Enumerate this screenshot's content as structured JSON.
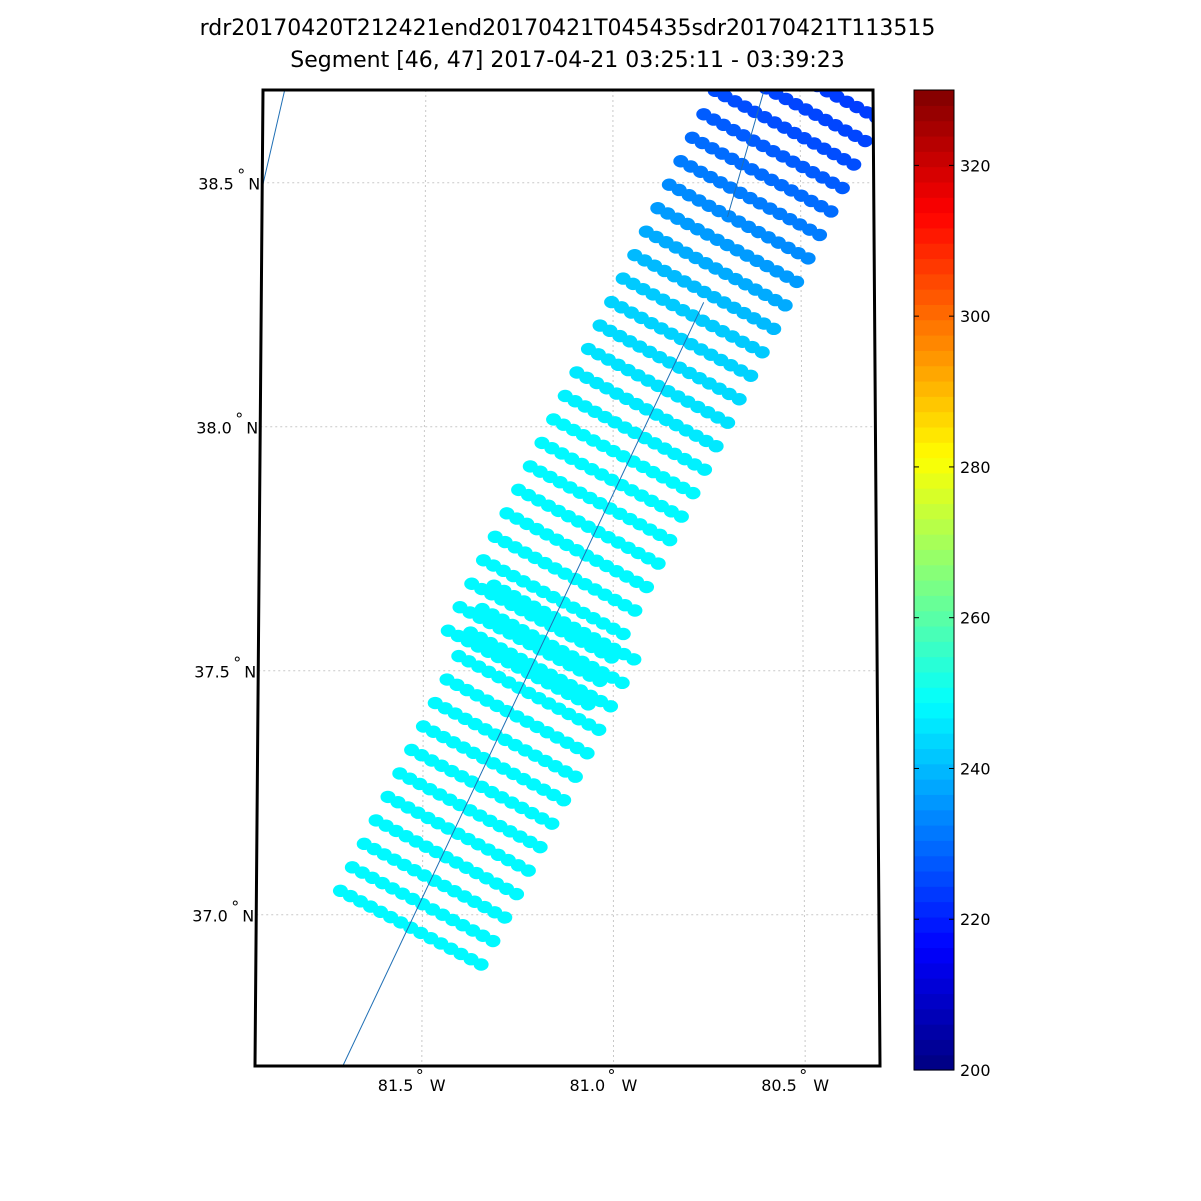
{
  "title": {
    "line1": "rdr20170420T212421end20170421T045435sdr20170421T113515",
    "line2": "Segment [46, 47] 2017-04-21 03:25:11 - 03:39:23"
  },
  "map": {
    "lon_range": [
      -81.935,
      -80.305
    ],
    "lat_range": [
      36.69,
      38.69
    ],
    "lat_ticks": [
      {
        "value": 38.5,
        "label": "38.5",
        "hemi": "N"
      },
      {
        "value": 38.0,
        "label": "38.0",
        "hemi": "N"
      },
      {
        "value": 37.5,
        "label": "37.5",
        "hemi": "N"
      },
      {
        "value": 37.0,
        "label": "37.0",
        "hemi": "N"
      }
    ],
    "lon_ticks": [
      {
        "value": -81.5,
        "label": "81.5",
        "hemi": "W"
      },
      {
        "value": -81.0,
        "label": "81.0",
        "hemi": "W"
      },
      {
        "value": -80.5,
        "label": "80.5",
        "hemi": "W"
      }
    ],
    "degree_symbol": "°",
    "grid": true,
    "grid_color": "#c8c8c8",
    "frame_color": "#000000",
    "ground_track_color": "#1f6fb5",
    "ground_tracks": [
      {
        "lon": [
          -81.877,
          -81.935
        ],
        "lat": [
          38.69,
          38.49
        ]
      },
      {
        "lon": [
          -80.596,
          -80.695
        ],
        "lat": [
          38.69,
          38.43
        ]
      },
      {
        "lon": [
          -80.759,
          -81.706
        ],
        "lat": [
          38.255,
          36.69
        ]
      }
    ]
  },
  "chart_data": {
    "type": "scatter",
    "description_units": "brightness temperature colour scale",
    "segments": [
      {
        "name": "segment 46",
        "start": {
          "lon": -81.715,
          "lat": 37.049
        },
        "row_step": {
          "dlon": 0.0308,
          "dlat": 0.0481
        },
        "along": {
          "dlon": 0.369,
          "dlat": -0.151
        },
        "rows": 14,
        "points_per_row": 15,
        "values_by_row": [
          248,
          248,
          248,
          248,
          248,
          248,
          248,
          248,
          248,
          248,
          248,
          248,
          248,
          248
        ]
      },
      {
        "name": "segment 47",
        "start": {
          "lon": -81.435,
          "lat": 37.582
        },
        "row_step": {
          "dlon": 0.0308,
          "dlat": 0.0481
        },
        "along": {
          "dlon": 0.369,
          "dlat": -0.151
        },
        "rows": 20,
        "points_per_row": 15,
        "values_by_row": [
          248,
          248,
          248,
          248,
          248,
          248,
          248,
          248,
          248,
          248,
          247,
          246,
          245,
          244,
          243,
          242,
          240,
          238,
          236,
          234
        ]
      },
      {
        "name": "segment 47 top",
        "start": {
          "lon": -80.819,
          "lat": 38.544
        },
        "row_step": {
          "dlon": 0.0308,
          "dlat": 0.0481
        },
        "along": {
          "dlon": 0.369,
          "dlat": -0.151
        },
        "rows": 0,
        "points_per_row": 15,
        "values_by_row": []
      }
    ],
    "top_rows_values": [
      232,
      230,
      228,
      226,
      225,
      224
    ],
    "colorbar": {
      "min": 200,
      "max": 330,
      "ticks": [
        320,
        300,
        280,
        260,
        240,
        220,
        200
      ],
      "colormap": "jet"
    }
  }
}
